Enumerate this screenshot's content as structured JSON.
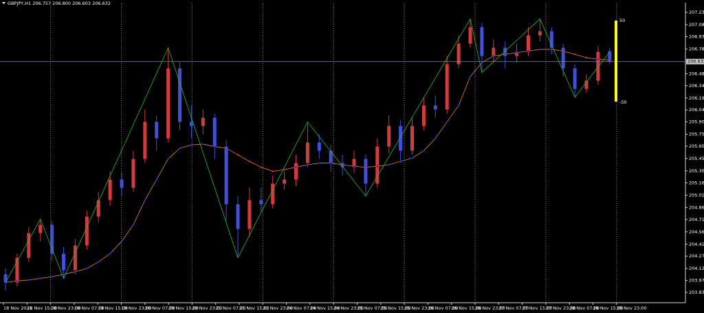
{
  "chart_data": {
    "type": "candlestick",
    "title": "GBPJPY,H1  206.757 206.800 206.603 206.632",
    "up_color": "#d63a3a",
    "down_color": "#3f4fe0",
    "x_labels": [
      "18 Nov 2025",
      "18 Nov 15:00",
      "18 Nov 23:00",
      "19 Nov 07:00",
      "19 Nov 15:00",
      "19 Nov 23:00",
      "20 Nov 07:00",
      "20 Nov 15:00",
      "20 Nov 23:00",
      "21 Nov 07:00",
      "21 Nov 15:00",
      "21 Nov 23:00",
      "24 Nov 07:00",
      "24 Nov 15:00",
      "24 Nov 23:00",
      "25 Nov 07:00",
      "25 Nov 15:00",
      "25 Nov 23:00",
      "26 Nov 07:00",
      "26 Nov 15:00",
      "26 Nov 23:00",
      "27 Nov 07:00",
      "27 Nov 15:00",
      "27 Nov 23:00",
      "28 Nov 07:00",
      "28 Nov 15:00",
      "28 Nov 23:00"
    ],
    "open": [
      204.05,
      203.95,
      204.25,
      204.55,
      204.65,
      204.3,
      204.1,
      204.4,
      204.75,
      204.95,
      205.2,
      205.1,
      205.45,
      205.9,
      205.7,
      206.55,
      205.9,
      205.85,
      205.95,
      205.6,
      204.9,
      204.6,
      204.95,
      204.9,
      205.15,
      205.2,
      205.4,
      205.65,
      205.55,
      205.4,
      205.35,
      205.45,
      205.15,
      205.6,
      205.85,
      205.55,
      205.85,
      206.1,
      206.05,
      206.6,
      206.85,
      207.05,
      206.7,
      206.8,
      206.7,
      206.75,
      206.95,
      207.0,
      206.8,
      206.55,
      206.3,
      206.4,
      206.757
    ],
    "high": [
      204.12,
      204.3,
      204.62,
      204.72,
      204.7,
      204.38,
      204.48,
      204.82,
      205.05,
      205.3,
      205.28,
      205.55,
      206.05,
      205.98,
      206.8,
      206.62,
      206.1,
      206.05,
      206.0,
      205.68,
      205.0,
      205.1,
      205.1,
      205.25,
      205.3,
      205.5,
      205.88,
      205.75,
      205.62,
      205.5,
      205.55,
      205.5,
      205.7,
      205.98,
      205.92,
      205.95,
      206.2,
      206.22,
      206.7,
      206.95,
      207.15,
      207.1,
      206.9,
      206.88,
      206.85,
      207.05,
      207.15,
      207.05,
      206.85,
      206.6,
      206.48,
      206.82,
      206.8
    ],
    "low": [
      203.85,
      203.9,
      204.2,
      204.45,
      204.22,
      204.0,
      204.05,
      204.35,
      204.68,
      204.88,
      205.0,
      205.05,
      205.4,
      205.55,
      205.65,
      205.8,
      205.7,
      205.75,
      205.45,
      204.7,
      204.25,
      204.5,
      204.8,
      204.85,
      205.08,
      205.12,
      205.35,
      205.45,
      205.3,
      205.25,
      205.28,
      205.0,
      205.1,
      205.52,
      205.4,
      205.5,
      205.8,
      205.95,
      206.0,
      206.55,
      206.8,
      206.5,
      206.62,
      206.55,
      206.62,
      206.7,
      206.88,
      206.72,
      206.45,
      206.2,
      206.25,
      206.35,
      206.603
    ],
    "close": [
      203.95,
      204.25,
      204.55,
      204.65,
      204.3,
      204.1,
      204.4,
      204.75,
      204.95,
      205.2,
      205.1,
      205.45,
      205.9,
      205.7,
      206.55,
      205.9,
      205.85,
      205.95,
      205.6,
      204.9,
      204.6,
      204.95,
      204.9,
      205.15,
      205.2,
      205.4,
      205.65,
      205.55,
      205.4,
      205.35,
      205.45,
      205.15,
      205.6,
      205.85,
      205.55,
      205.85,
      206.1,
      206.05,
      206.6,
      206.85,
      207.05,
      206.7,
      206.8,
      206.7,
      206.75,
      206.95,
      207.0,
      206.8,
      206.55,
      206.3,
      206.4,
      206.75,
      206.632
    ],
    "moving_average": {
      "color": "#e08a1e",
      "above_color": "#e02020",
      "below_color": "#2020ff",
      "values": [
        203.95,
        203.97,
        203.98,
        204.0,
        204.02,
        204.05,
        204.08,
        204.12,
        204.2,
        204.3,
        204.45,
        204.65,
        204.95,
        205.2,
        205.45,
        205.58,
        205.62,
        205.63,
        205.6,
        205.58,
        205.5,
        205.42,
        205.35,
        205.3,
        205.32,
        205.35,
        205.38,
        205.4,
        205.4,
        205.38,
        205.36,
        205.35,
        205.36,
        205.38,
        205.42,
        205.46,
        205.55,
        205.7,
        205.9,
        206.1,
        206.45,
        206.62,
        206.7,
        206.72,
        206.74,
        206.76,
        206.78,
        206.78,
        206.76,
        206.72,
        206.68,
        206.66,
        206.65
      ]
    },
    "zigzag": {
      "color": "#20c020",
      "x": [
        0,
        3,
        5,
        14,
        20,
        26,
        31,
        40,
        41,
        46,
        49,
        52
      ],
      "values": [
        203.95,
        204.72,
        204.0,
        206.8,
        204.25,
        205.9,
        205.0,
        207.15,
        206.5,
        207.15,
        206.2,
        206.75
      ]
    },
    "oscillator": {
      "color": "#ffff00",
      "levels": [
        50,
        -50
      ]
    },
    "last_price": 206.632,
    "ylim": [
      203.713,
      207.338
    ],
    "yticks": [
      {
        "value": 207.23,
        "label": "207.230"
      },
      {
        "value": 207.08,
        "label": "207.080"
      },
      {
        "value": 206.935,
        "label": "206.935"
      },
      {
        "value": 206.785,
        "label": "206.785"
      },
      {
        "value": 206.485,
        "label": "206.485"
      },
      {
        "value": 206.34,
        "label": "206.340"
      },
      {
        "value": 206.19,
        "label": "206.190"
      },
      {
        "value": 206.045,
        "label": "206.045"
      },
      {
        "value": 205.9,
        "label": "205.900"
      },
      {
        "value": 205.75,
        "label": "205.750"
      },
      {
        "value": 205.605,
        "label": "205.605"
      },
      {
        "value": 205.455,
        "label": "205.455"
      },
      {
        "value": 205.305,
        "label": "205.305"
      },
      {
        "value": 205.16,
        "label": "205.160"
      },
      {
        "value": 205.01,
        "label": "205.010"
      },
      {
        "value": 204.86,
        "label": "204.860"
      },
      {
        "value": 204.715,
        "label": "204.715"
      },
      {
        "value": 204.565,
        "label": "204.565"
      },
      {
        "value": 204.415,
        "label": "204.415"
      },
      {
        "value": 204.27,
        "label": "204.270"
      },
      {
        "value": 204.12,
        "label": "204.120"
      },
      {
        "value": 203.975,
        "label": "203.975"
      },
      {
        "value": 203.83,
        "label": "203.830"
      }
    ]
  }
}
